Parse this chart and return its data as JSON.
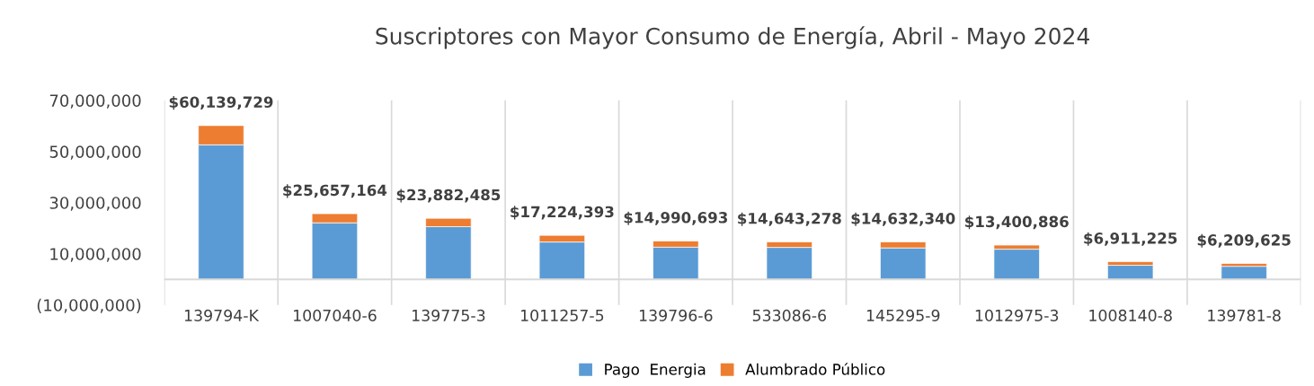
{
  "chart_data": {
    "type": "bar",
    "title": "Suscriptores con Mayor Consumo de Energía, Abril - Mayo 2024",
    "categories": [
      "139794-K",
      "1007040-6",
      "139775-3",
      "1011257-5",
      "139796-6",
      "533086-6",
      "145295-9",
      "1012975-3",
      "1008140-8",
      "139781-8"
    ],
    "stacked": true,
    "series": [
      {
        "name": "Pago  Energia",
        "color": "#5b9bd5",
        "values": [
          52600000,
          22100000,
          20600000,
          14600000,
          12600000,
          12500000,
          12300000,
          11800000,
          5500000,
          5100000
        ]
      },
      {
        "name": "Alumbrado Público",
        "color": "#ed7d31",
        "values": [
          7539729,
          3557164,
          3282485,
          2624393,
          2390693,
          2143278,
          2332340,
          1600886,
          1411225,
          1109625
        ]
      }
    ],
    "totals": [
      "$60,139,729",
      "$25,657,164",
      "$23,882,485",
      "$17,224,393",
      "$14,990,693",
      "$14,643,278",
      "$14,632,340",
      "$13,400,886",
      "$6,911,225",
      "$6,209,625"
    ],
    "ylim": [
      -10000000,
      70000000
    ],
    "yticks": [
      {
        "value": -10000000,
        "label": "(10,000,000)"
      },
      {
        "value": 10000000,
        "label": "10,000,000"
      },
      {
        "value": 30000000,
        "label": "30,000,000"
      },
      {
        "value": 50000000,
        "label": "50,000,000"
      },
      {
        "value": 70000000,
        "label": "70,000,000"
      }
    ],
    "grid": "x",
    "legend": "bottom"
  }
}
